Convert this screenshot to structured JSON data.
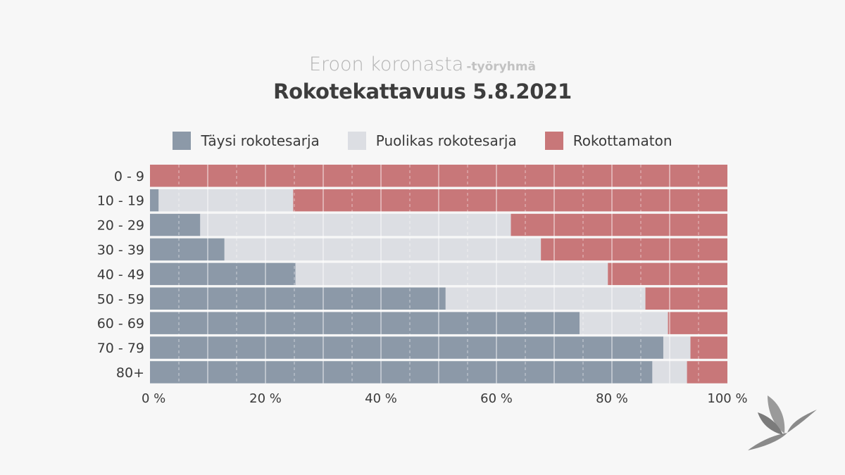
{
  "header": {
    "supertitle": "Eroon koronasta",
    "supertitle_suffix": "-työryhmä",
    "title": "Rokotekattavuus 5.8.2021"
  },
  "colors": {
    "full": "#8c99a8",
    "partial": "#dcdee3",
    "unvaccinated": "#c87779",
    "background": "#f7f7f7",
    "text": "#3a3a3a"
  },
  "logo": {
    "icon": "bird-logo-icon"
  },
  "chart_data": {
    "type": "bar",
    "orientation": "horizontal",
    "stacked": true,
    "categories": [
      "0 - 9",
      "10 - 19",
      "20 - 29",
      "30 - 39",
      "40 - 49",
      "50 - 59",
      "60 - 69",
      "70 - 79",
      "80+"
    ],
    "series": [
      {
        "name": "Täysi rokotesarja",
        "values": [
          0,
          1.5,
          8.7,
          12.9,
          25.2,
          51.2,
          74.4,
          88.9,
          87.0
        ]
      },
      {
        "name": "Puolikas rokotesarja",
        "values": [
          0,
          23.3,
          53.8,
          54.8,
          54.1,
          34.6,
          15.3,
          4.7,
          6.0
        ]
      },
      {
        "name": "Rokottamaton",
        "values": [
          100,
          75.2,
          37.5,
          32.3,
          20.7,
          14.2,
          10.3,
          6.4,
          7.0
        ]
      }
    ],
    "xlim": [
      0,
      100
    ],
    "xticks": [
      0,
      20,
      40,
      60,
      80,
      100
    ],
    "xtick_labels": [
      "0 %",
      "20 %",
      "40 %",
      "60 %",
      "80 %",
      "100 %"
    ],
    "legend": "top-center",
    "grid": true
  }
}
